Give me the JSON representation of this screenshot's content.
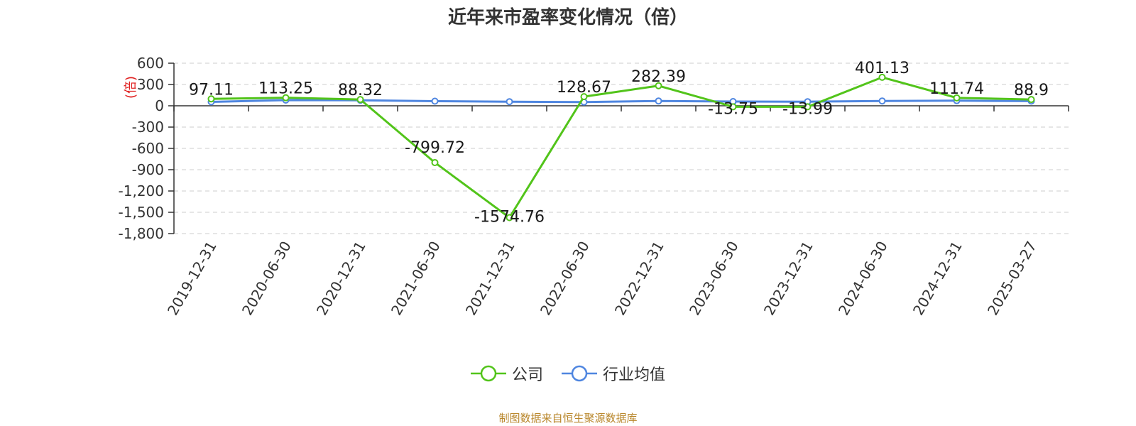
{
  "title": "近年来市盈率变化情况（倍）",
  "source": "制图数据来自恒生聚源数据库",
  "chart_data": {
    "type": "line",
    "title": "近年来市盈率变化情况（倍）",
    "ylabel": "(倍)",
    "ylim": [
      -1800,
      600
    ],
    "yticks": [
      600,
      300,
      0,
      -300,
      -600,
      -900,
      -1200,
      -1500,
      -1800
    ],
    "ytick_labels": [
      "600",
      "300",
      "0",
      "-300",
      "-600",
      "-900",
      "-1,200",
      "-1,500",
      "-1,800"
    ],
    "categories": [
      "2019-12-31",
      "2020-06-30",
      "2020-12-31",
      "2021-06-30",
      "2021-12-31",
      "2022-06-30",
      "2022-12-31",
      "2023-06-30",
      "2023-12-31",
      "2024-06-30",
      "2024-12-31",
      "2025-03-27"
    ],
    "grid": true,
    "legend_position": "bottom",
    "series": [
      {
        "name": "公司",
        "color": "#52c41a",
        "values": [
          97.11,
          113.25,
          88.32,
          -799.72,
          -1574.76,
          128.67,
          282.39,
          -13.75,
          -13.99,
          401.13,
          111.74,
          88.9
        ],
        "labels": [
          "97.11",
          "113.25",
          "88.32",
          "-799.72",
          "-1574.76",
          "128.67",
          "282.39",
          "-13.75",
          "-13.99",
          "401.13",
          "111.74",
          "88.9"
        ]
      },
      {
        "name": "行业均值",
        "color": "#4f86e0",
        "values": [
          55,
          80,
          78,
          65,
          58,
          52,
          68,
          60,
          58,
          68,
          72,
          66
        ]
      }
    ]
  }
}
